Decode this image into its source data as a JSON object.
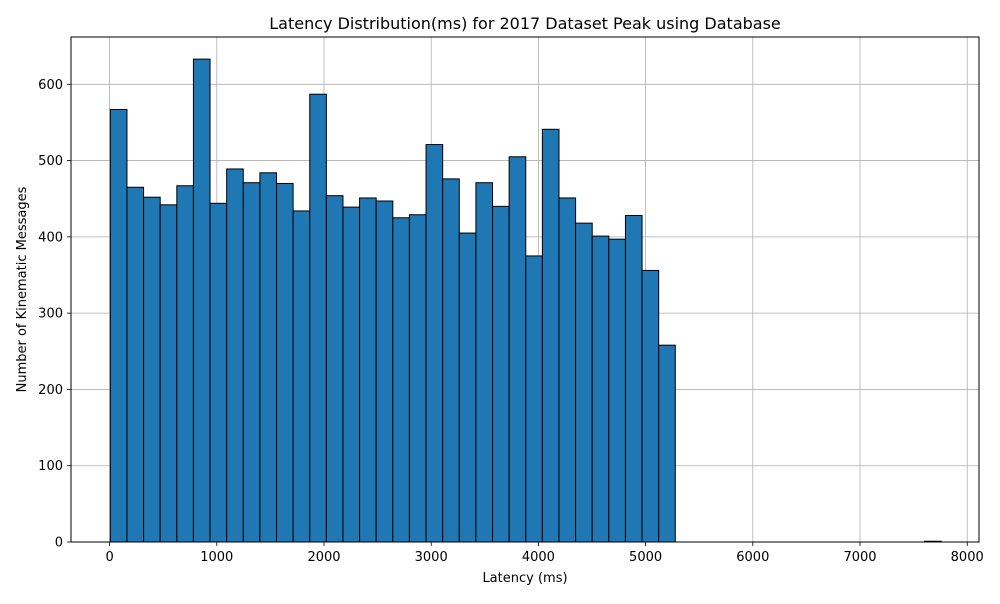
{
  "chart_data": {
    "type": "bar",
    "title": "Latency Distribution(ms) for 2017 Dataset Peak using Database",
    "xlabel": "Latency (ms)",
    "ylabel": "Number of Kinematic Messages",
    "xlim": [
      -360,
      8110
    ],
    "ylim": [
      0,
      662
    ],
    "xticks": [
      0,
      1000,
      2000,
      3000,
      4000,
      5000,
      6000,
      7000,
      8000
    ],
    "yticks": [
      0,
      100,
      200,
      300,
      400,
      500,
      600
    ],
    "grid": true,
    "bar_color": "#1f77b4",
    "edge_color": "#000000",
    "bin_width": 155,
    "bin_start": 7,
    "values": [
      567,
      465,
      452,
      442,
      467,
      633,
      444,
      489,
      471,
      484,
      470,
      434,
      587,
      454,
      439,
      451,
      447,
      425,
      429,
      521,
      476,
      405,
      471,
      440,
      505,
      375,
      541,
      451,
      418,
      401,
      397,
      428,
      356,
      258,
      0,
      0,
      0,
      0,
      0,
      0,
      0,
      0,
      0,
      0,
      0,
      0,
      0,
      0,
      0,
      1
    ]
  }
}
